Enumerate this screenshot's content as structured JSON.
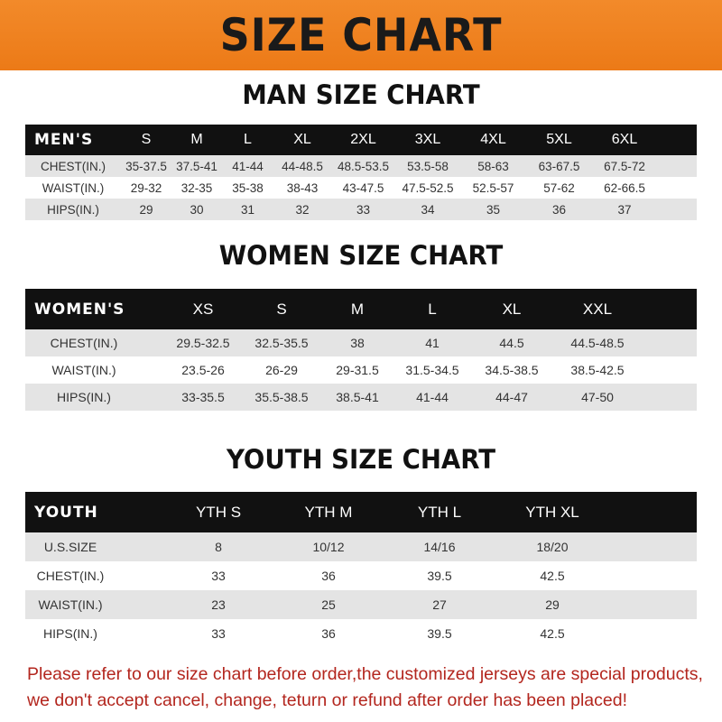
{
  "banner": "SIZE CHART",
  "men": {
    "title": "MAN SIZE CHART",
    "headers": [
      "MEN'S",
      "S",
      "M",
      "L",
      "XL",
      "2XL",
      "3XL",
      "4XL",
      "5XL",
      "6XL"
    ],
    "rows": [
      [
        "CHEST(IN.)",
        "35-37.5",
        "37.5-41",
        "41-44",
        "44-48.5",
        "48.5-53.5",
        "53.5-58",
        "58-63",
        "63-67.5",
        "67.5-72"
      ],
      [
        "WAIST(IN.)",
        "29-32",
        "32-35",
        "35-38",
        "38-43",
        "43-47.5",
        "47.5-52.5",
        "52.5-57",
        "57-62",
        "62-66.5"
      ],
      [
        "HIPS(IN.)",
        "29",
        "30",
        "31",
        "32",
        "33",
        "34",
        "35",
        "36",
        "37"
      ]
    ]
  },
  "women": {
    "title": "WOMEN SIZE CHART",
    "headers": [
      "WOMEN'S",
      "XS",
      "S",
      "M",
      "L",
      "XL",
      "XXL"
    ],
    "rows": [
      [
        "CHEST(IN.)",
        "29.5-32.5",
        "32.5-35.5",
        "38",
        "41",
        "44.5",
        "44.5-48.5"
      ],
      [
        "WAIST(IN.)",
        "23.5-26",
        "26-29",
        "29-31.5",
        "31.5-34.5",
        "34.5-38.5",
        "38.5-42.5"
      ],
      [
        "HIPS(IN.)",
        "33-35.5",
        "35.5-38.5",
        "38.5-41",
        "41-44",
        "44-47",
        "47-50"
      ]
    ]
  },
  "youth": {
    "title": "YOUTH SIZE CHART",
    "headers": [
      "YOUTH",
      "YTH S",
      "YTH M",
      "YTH L",
      "YTH XL"
    ],
    "rows": [
      [
        "U.S.SIZE",
        "8",
        "10/12",
        "14/16",
        "18/20"
      ],
      [
        "CHEST(IN.)",
        "33",
        "36",
        "39.5",
        "42.5"
      ],
      [
        "WAIST(IN.)",
        "23",
        "25",
        "27",
        "29"
      ],
      [
        "HIPS(IN.)",
        "33",
        "36",
        "39.5",
        "42.5"
      ]
    ]
  },
  "note": {
    "line1": "Please refer to our size chart before order,the customized jerseys are special products,",
    "line2": "we don't accept cancel, change, teturn or refund after order has been placed!"
  },
  "colors": {
    "banner": "#ef8220",
    "header_row": "#111111",
    "stripe": "#e4e4e4",
    "note": "#b3261e"
  }
}
